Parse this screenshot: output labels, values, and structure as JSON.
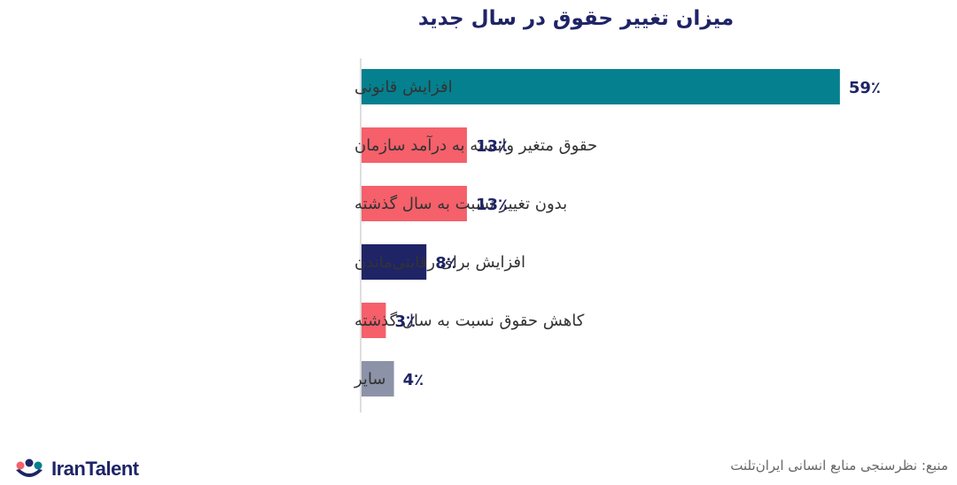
{
  "chart_data": {
    "type": "bar",
    "orientation": "horizontal",
    "title": "میزان تغییر حقوق در سال جدید",
    "categories": [
      "افزایش قانونی",
      "حقوق متغیر وابسته به درآمد سازمان",
      "بدون تغییر نسبت به سال گذشته",
      "افزایش برای رقابتی‌ماندن",
      "کاهش حقوق نسبت به سال گذشته",
      "سایر"
    ],
    "values": [
      59,
      13,
      13,
      8,
      3,
      4
    ],
    "value_labels": [
      "59٪",
      "13٪",
      "13٪",
      "8٪",
      "3٪",
      "4٪"
    ],
    "colors": [
      "#05808f",
      "#f5606a",
      "#f5606a",
      "#1f2466",
      "#f5606a",
      "#8c93a8"
    ],
    "unit": "٪",
    "xlim": [
      0,
      60
    ],
    "grid": false,
    "legend": "none"
  },
  "footer": {
    "brand": "IranTalent",
    "source": "منبع: نظرسنجی منابع انسانی ایران‌تلنت"
  }
}
